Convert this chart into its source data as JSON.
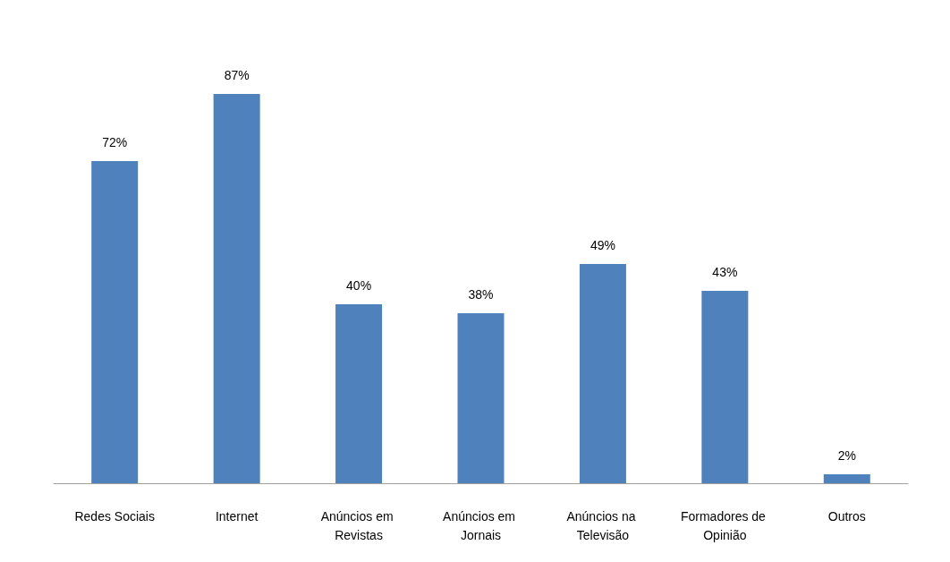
{
  "chart_data": {
    "type": "bar",
    "categories": [
      "Redes Sociais",
      "Internet",
      "Anúncios em Revistas",
      "Anúncios em Jornais",
      "Anúncios na Televisão",
      "Formadores de Opinião",
      "Outros"
    ],
    "values": [
      72,
      87,
      40,
      38,
      49,
      43,
      2
    ],
    "value_labels": [
      "72%",
      "87%",
      "40%",
      "38%",
      "49%",
      "43%",
      "2%"
    ],
    "color": "#4f81bd",
    "grid": false
  }
}
